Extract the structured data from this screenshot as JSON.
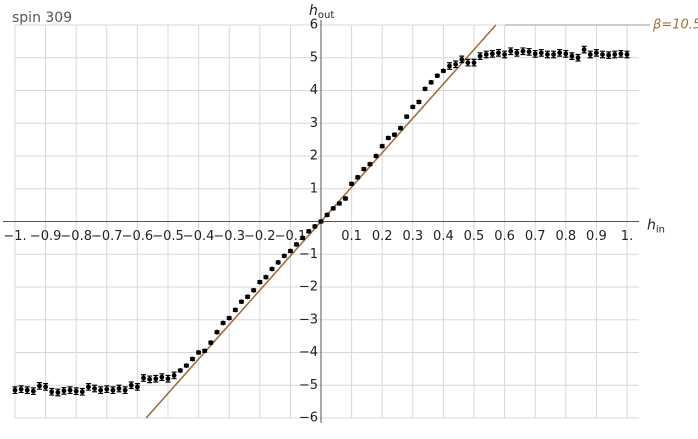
{
  "chart_data": {
    "type": "scatter",
    "title": "spin 309",
    "x_label": {
      "text": "h",
      "sub": "in"
    },
    "y_label": {
      "text": "h",
      "sub": "out"
    },
    "xlim": [
      -1,
      1
    ],
    "ylim": [
      -6,
      6
    ],
    "xticks": [
      {
        "value": -1,
        "label": "−1."
      },
      {
        "value": -0.9,
        "label": "−0.9"
      },
      {
        "value": -0.8,
        "label": "−0.8"
      },
      {
        "value": -0.7,
        "label": "−0.7"
      },
      {
        "value": -0.6,
        "label": "−0.6"
      },
      {
        "value": -0.5,
        "label": "−0.5"
      },
      {
        "value": -0.4,
        "label": "−0.4"
      },
      {
        "value": -0.3,
        "label": "−0.3"
      },
      {
        "value": -0.2,
        "label": "−0.2"
      },
      {
        "value": -0.1,
        "label": "−0.1"
      },
      0.1,
      0.2,
      0.3,
      0.4,
      0.5,
      0.6,
      0.7,
      0.8,
      0.9,
      {
        "value": 1,
        "label": "1."
      }
    ],
    "yticks": [
      {
        "value": -6,
        "label": "−6"
      },
      {
        "value": -5,
        "label": "−5"
      },
      {
        "value": -4,
        "label": "−4"
      },
      {
        "value": -3,
        "label": "−3"
      },
      {
        "value": -2,
        "label": "−2"
      },
      {
        "value": -1,
        "label": "−1"
      },
      1,
      2,
      3,
      4,
      5,
      6
    ],
    "grid": true,
    "x": [
      -1,
      -0.98,
      -0.96,
      -0.94,
      -0.92,
      -0.9,
      -0.88,
      -0.86,
      -0.84,
      -0.82,
      -0.8,
      -0.78,
      -0.76,
      -0.74,
      -0.72,
      -0.7,
      -0.68,
      -0.66,
      -0.64,
      -0.62,
      -0.6,
      -0.58,
      -0.56,
      -0.54,
      -0.52,
      -0.5,
      -0.48,
      -0.46,
      -0.44,
      -0.42,
      -0.4,
      -0.38,
      -0.36,
      -0.34,
      -0.32,
      -0.3,
      -0.28,
      -0.26,
      -0.24,
      -0.22,
      -0.2,
      -0.18,
      -0.16,
      -0.14,
      -0.12,
      -0.1,
      -0.08,
      -0.06,
      -0.04,
      -0.02,
      0,
      0.02,
      0.04,
      0.06,
      0.08,
      0.1,
      0.12,
      0.14,
      0.16,
      0.18,
      0.2,
      0.22,
      0.24,
      0.26,
      0.28,
      0.3,
      0.32,
      0.34,
      0.36,
      0.38,
      0.4,
      0.42,
      0.44,
      0.46,
      0.48,
      0.5,
      0.52,
      0.54,
      0.56,
      0.58,
      0.6,
      0.62,
      0.64,
      0.66,
      0.68,
      0.7,
      0.72,
      0.74,
      0.76,
      0.78,
      0.8,
      0.82,
      0.84,
      0.86,
      0.88,
      0.9,
      0.92,
      0.94,
      0.96,
      0.98,
      1
    ],
    "series": [
      {
        "color": "#000000",
        "values": [
          -5.15,
          -5.12,
          -5.15,
          -5.18,
          -5.02,
          -5.05,
          -5.2,
          -5.22,
          -5.17,
          -5.15,
          -5.18,
          -5.2,
          -5.05,
          -5.1,
          -5.15,
          -5.12,
          -5.15,
          -5.1,
          -5.15,
          -5.0,
          -5.05,
          -4.78,
          -4.82,
          -4.8,
          -4.75,
          -4.8,
          -4.7,
          -4.55,
          -4.4,
          -4.2,
          -4.0,
          -3.95,
          -3.7,
          -3.38,
          -3.1,
          -2.95,
          -2.7,
          -2.45,
          -2.3,
          -2.1,
          -1.85,
          -1.7,
          -1.45,
          -1.25,
          -1.05,
          -0.9,
          -0.7,
          -0.5,
          -0.3,
          -0.15,
          0,
          0.2,
          0.4,
          0.55,
          0.7,
          1.15,
          1.35,
          1.6,
          1.75,
          2.0,
          2.3,
          2.55,
          2.65,
          2.85,
          3.2,
          3.5,
          3.65,
          4.05,
          4.25,
          4.45,
          4.6,
          4.75,
          4.8,
          4.95,
          4.85,
          4.85,
          5.05,
          5.1,
          5.12,
          5.15,
          5.1,
          5.2,
          5.15,
          5.2,
          5.18,
          5.12,
          5.15,
          5.1,
          5.1,
          5.15,
          5.12,
          5.05,
          5.0,
          5.25,
          5.1,
          5.15,
          5.1,
          5.08,
          5.1,
          5.12,
          5.1
        ],
        "errors": [
          0.1,
          0.1,
          0.1,
          0.1,
          0.1,
          0.1,
          0.1,
          0.1,
          0.1,
          0.1,
          0.1,
          0.1,
          0.1,
          0.1,
          0.1,
          0.1,
          0.1,
          0.1,
          0.1,
          0.1,
          0.1,
          0.1,
          0.1,
          0.1,
          0.1,
          0.1,
          0.1,
          0.04,
          0.04,
          0.04,
          0.04,
          0.04,
          0.04,
          0.04,
          0.04,
          0.04,
          0.04,
          0.04,
          0.04,
          0.04,
          0.04,
          0.04,
          0.04,
          0.04,
          0.04,
          0.04,
          0.04,
          0.04,
          0.04,
          0.04,
          0.04,
          0.04,
          0.04,
          0.04,
          0.04,
          0.04,
          0.04,
          0.04,
          0.04,
          0.04,
          0.04,
          0.04,
          0.04,
          0.04,
          0.04,
          0.04,
          0.04,
          0.04,
          0.04,
          0.04,
          0.04,
          0.1,
          0.1,
          0.1,
          0.1,
          0.1,
          0.1,
          0.1,
          0.1,
          0.1,
          0.1,
          0.1,
          0.1,
          0.1,
          0.1,
          0.1,
          0.1,
          0.1,
          0.1,
          0.1,
          0.1,
          0.1,
          0.1,
          0.1,
          0.1,
          0.1,
          0.1,
          0.1,
          0.1,
          0.1,
          0.1
        ]
      }
    ],
    "fit_line": {
      "name": "β=10.5",
      "slope": 10.5,
      "color": "#a0703c"
    }
  }
}
